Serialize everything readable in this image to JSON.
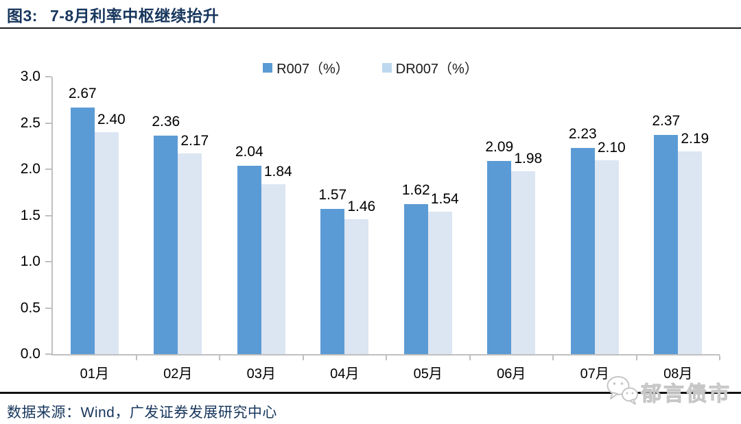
{
  "header": {
    "figure_label": "图3:",
    "title": "7-8月利率中枢继续抬升"
  },
  "footer": {
    "source": "数据来源：Wind，广发证券发展研究中心",
    "watermark": "郁言债市"
  },
  "colors": {
    "title_navy": "#17365D",
    "r007_blue": "#5B9BD5",
    "dr007_bar_blue": "#DCE5F2",
    "dr007_legend_blue": "#BDD7EE",
    "axis_gray": "#BFBFBF",
    "separator_black": "#111111",
    "label_black": "#000000",
    "watermark_gray": "#C6C6C6"
  },
  "chart_data": {
    "type": "bar",
    "title": "图3: 7-8月利率中枢继续抬升",
    "categories": [
      "01月",
      "02月",
      "03月",
      "04月",
      "05月",
      "06月",
      "07月",
      "08月"
    ],
    "series": [
      {
        "name": "R007（%）",
        "color": "#5B9BD5",
        "legend_color": "#5B9BD5",
        "values": [
          2.67,
          2.36,
          2.04,
          1.57,
          1.62,
          2.09,
          2.23,
          2.37
        ]
      },
      {
        "name": "DR007（%）",
        "color": "#DCE5F2",
        "legend_color": "#BDD7EE",
        "values": [
          2.4,
          2.17,
          1.84,
          1.46,
          1.54,
          1.98,
          2.1,
          2.19
        ]
      }
    ],
    "xlabel": "",
    "ylabel": "",
    "ylim": [
      0.0,
      3.0
    ],
    "yticks": [
      "0.0",
      "0.5",
      "1.0",
      "1.5",
      "2.0",
      "2.5",
      "3.0"
    ],
    "grid": false,
    "legend_position": "top-center",
    "value_labels": true,
    "value_label_format": "2-decimals"
  }
}
